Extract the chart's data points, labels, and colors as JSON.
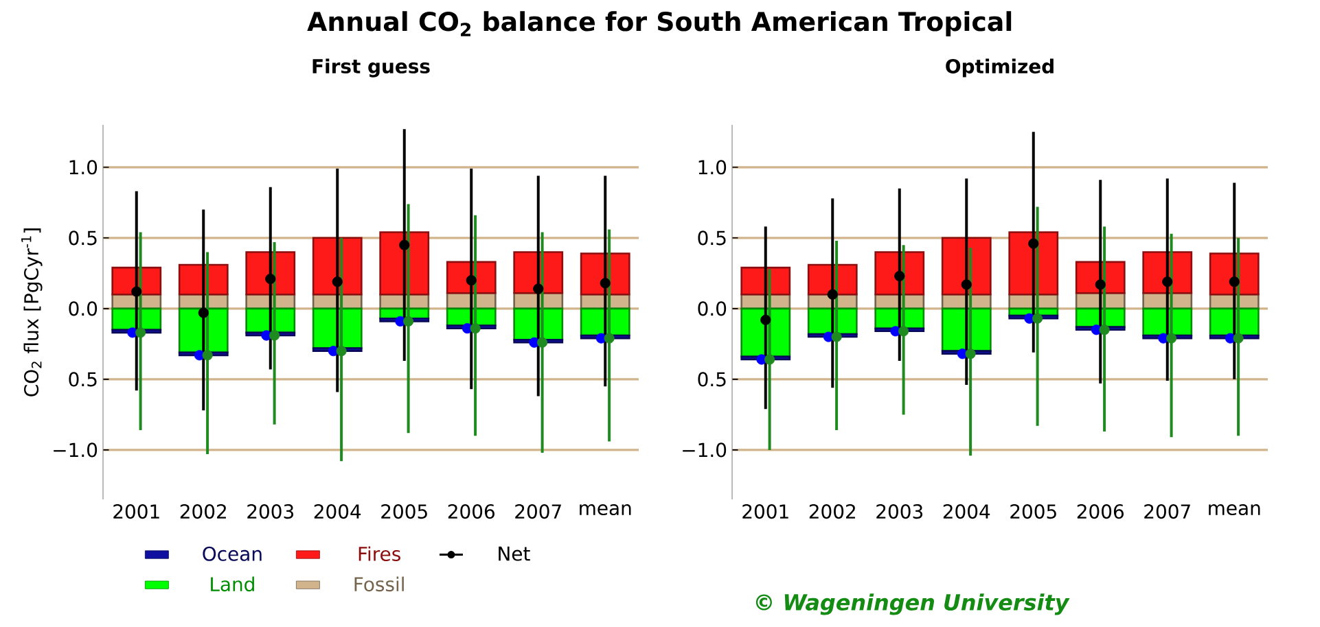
{
  "chart_data": [
    {
      "type": "bar",
      "title": "Annual CO$_{2}$ balance for South American Tropical",
      "subtitle": "First guess",
      "ylabel": "CO$_{2}$ flux [PgCyr$^{-1}$]",
      "categories": [
        "2001",
        "2002",
        "2003",
        "2004",
        "2005",
        "2006",
        "2007",
        "mean"
      ],
      "ylim": [
        -1.35,
        1.3
      ],
      "yticks": [
        {
          "value": -1.0,
          "label": "−1.0"
        },
        {
          "value": -0.5,
          "label": "0.5"
        },
        {
          "value": 0.0,
          "label": "0.0"
        },
        {
          "value": 0.5,
          "label": "0.5"
        },
        {
          "value": 1.0,
          "label": "1.0"
        }
      ],
      "grid": "y",
      "legend": "bottom",
      "stacked": true,
      "series": [
        {
          "name": "Fossil",
          "color": "#d2b48c",
          "values": [
            0.1,
            0.1,
            0.1,
            0.1,
            0.1,
            0.11,
            0.11,
            0.1
          ]
        },
        {
          "name": "Land",
          "color": "#00ff00",
          "values": [
            -0.15,
            -0.31,
            -0.17,
            -0.28,
            -0.07,
            -0.12,
            -0.22,
            -0.19
          ]
        },
        {
          "name": "Net",
          "type": "scatter",
          "color": "#000000",
          "marker": "circle",
          "values": [
            0.12,
            -0.03,
            0.21,
            0.19,
            0.45,
            0.2,
            0.14,
            0.18
          ],
          "errors": [
            [
              -0.58,
              0.83
            ],
            [
              -0.72,
              0.7
            ],
            [
              -0.43,
              0.86
            ],
            [
              -0.59,
              0.99
            ],
            [
              -0.37,
              1.27
            ],
            [
              -0.57,
              0.99
            ],
            [
              -0.62,
              0.94
            ],
            [
              -0.55,
              0.94
            ]
          ]
        },
        {
          "name": "Fires",
          "color": "#ff1a1a",
          "values": [
            0.19,
            0.21,
            0.3,
            0.4,
            0.44,
            0.22,
            0.29,
            0.29
          ]
        },
        {
          "name": "Ocean",
          "color": "#1010a0",
          "values": [
            -0.02,
            -0.02,
            -0.02,
            -0.02,
            -0.02,
            -0.02,
            -0.02,
            -0.02
          ]
        },
        {
          "type": "scatter",
          "color": "#0000ff",
          "marker": "circle",
          "values": [
            -0.17,
            -0.33,
            -0.19,
            -0.3,
            -0.09,
            -0.14,
            -0.24,
            -0.21
          ]
        },
        {
          "type": "scatter",
          "color": "#1f8a1f",
          "marker": "circle",
          "values": [
            -0.17,
            -0.33,
            -0.19,
            -0.3,
            -0.09,
            -0.14,
            -0.24,
            -0.21
          ],
          "errors": [
            [
              -0.86,
              0.54
            ],
            [
              -1.03,
              0.4
            ],
            [
              -0.82,
              0.47
            ],
            [
              -1.08,
              0.5
            ],
            [
              -0.88,
              0.74
            ],
            [
              -0.9,
              0.66
            ],
            [
              -1.02,
              0.54
            ],
            [
              -0.94,
              0.56
            ]
          ]
        }
      ]
    },
    {
      "type": "bar",
      "subtitle": "Optimized",
      "annotations": [
        "© Wageningen University"
      ],
      "categories": [
        "2001",
        "2002",
        "2003",
        "2004",
        "2005",
        "2006",
        "2007",
        "mean"
      ],
      "ylim": [
        -1.35,
        1.3
      ],
      "yticks": [
        {
          "value": -1.0,
          "label": "−1.0"
        },
        {
          "value": -0.5,
          "label": "0.5"
        },
        {
          "value": 0.0,
          "label": "0.0"
        },
        {
          "value": 0.5,
          "label": "0.5"
        },
        {
          "value": 1.0,
          "label": "1.0"
        }
      ],
      "grid": "y",
      "stacked": true,
      "series": [
        {
          "color": "#d2b48c",
          "values": [
            0.1,
            0.1,
            0.1,
            0.1,
            0.1,
            0.11,
            0.11,
            0.1
          ]
        },
        {
          "color": "#00ff00",
          "values": [
            -0.34,
            -0.18,
            -0.14,
            -0.3,
            -0.05,
            -0.13,
            -0.19,
            -0.19
          ]
        },
        {
          "type": "scatter",
          "color": "#000000",
          "marker": "circle",
          "values": [
            -0.08,
            0.1,
            0.23,
            0.17,
            0.46,
            0.17,
            0.19,
            0.19
          ],
          "errors": [
            [
              -0.71,
              0.58
            ],
            [
              -0.56,
              0.78
            ],
            [
              -0.37,
              0.85
            ],
            [
              -0.54,
              0.92
            ],
            [
              -0.31,
              1.25
            ],
            [
              -0.53,
              0.91
            ],
            [
              -0.51,
              0.92
            ],
            [
              -0.5,
              0.89
            ]
          ]
        },
        {
          "color": "#ff1a1a",
          "values": [
            0.19,
            0.21,
            0.3,
            0.4,
            0.44,
            0.22,
            0.29,
            0.29
          ]
        },
        {
          "color": "#1010a0",
          "values": [
            -0.02,
            -0.02,
            -0.02,
            -0.02,
            -0.02,
            -0.02,
            -0.02,
            -0.02
          ]
        },
        {
          "type": "scatter",
          "color": "#0000ff",
          "marker": "circle",
          "values": [
            -0.36,
            -0.2,
            -0.16,
            -0.32,
            -0.07,
            -0.15,
            -0.21,
            -0.21
          ]
        },
        {
          "type": "scatter",
          "color": "#1f8a1f",
          "marker": "circle",
          "values": [
            -0.36,
            -0.2,
            -0.16,
            -0.32,
            -0.07,
            -0.15,
            -0.21,
            -0.21
          ],
          "errors": [
            [
              -1.0,
              0.28
            ],
            [
              -0.86,
              0.48
            ],
            [
              -0.75,
              0.45
            ],
            [
              -1.04,
              0.43
            ],
            [
              -0.83,
              0.72
            ],
            [
              -0.87,
              0.58
            ],
            [
              -0.91,
              0.53
            ],
            [
              -0.9,
              0.5
            ]
          ]
        }
      ]
    }
  ]
}
